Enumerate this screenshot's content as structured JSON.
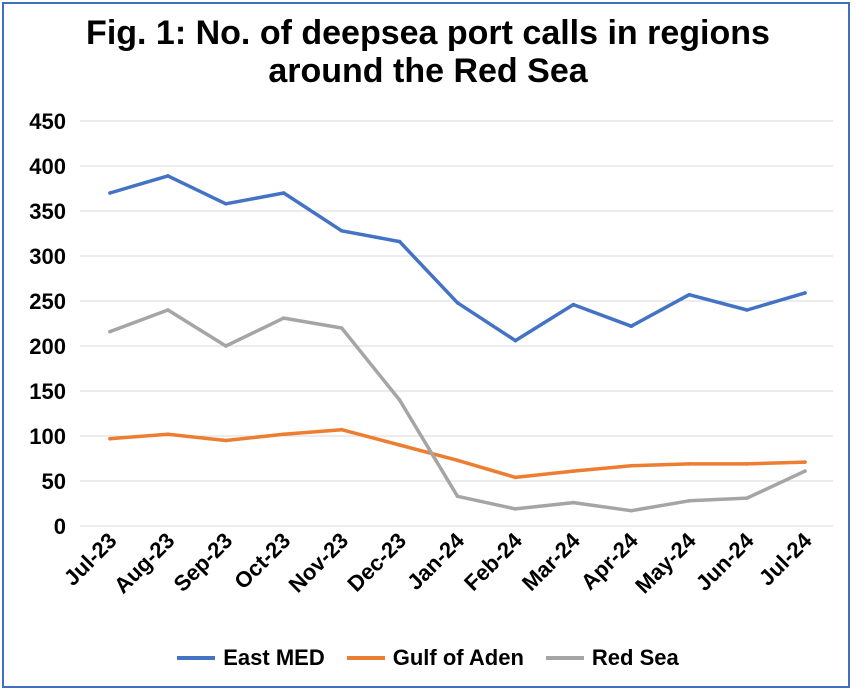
{
  "chart_data": {
    "type": "line",
    "title_lines": [
      "Fig. 1: No. of deepsea port calls in regions",
      "around the Red Sea"
    ],
    "categories": [
      "Jul-23",
      "Aug-23",
      "Sep-23",
      "Oct-23",
      "Nov-23",
      "Dec-23",
      "Jan-24",
      "Feb-24",
      "Mar-24",
      "Apr-24",
      "May-24",
      "Jun-24",
      "Jul-24"
    ],
    "y_ticks": [
      "0",
      "50",
      "100",
      "150",
      "200",
      "250",
      "300",
      "350",
      "400",
      "450"
    ],
    "ylim": [
      0,
      450
    ],
    "grid": true,
    "legend_position": "bottom",
    "series": [
      {
        "name": "East MED",
        "color": "#4472c4",
        "values": [
          370,
          389,
          358,
          370,
          328,
          316,
          248,
          206,
          246,
          222,
          257,
          240,
          259
        ]
      },
      {
        "name": "Gulf of Aden",
        "color": "#ed7d31",
        "values": [
          97,
          102,
          95,
          102,
          107,
          90,
          73,
          54,
          61,
          67,
          69,
          69,
          71
        ]
      },
      {
        "name": "Red Sea",
        "color": "#a5a5a5",
        "values": [
          216,
          240,
          200,
          231,
          220,
          140,
          33,
          19,
          26,
          17,
          28,
          31,
          61
        ]
      }
    ]
  }
}
